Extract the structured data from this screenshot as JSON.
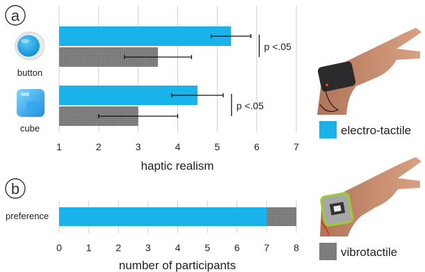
{
  "chart_data": [
    {
      "panel_label": "a",
      "type": "bar",
      "orientation": "horizontal",
      "categories": [
        "button",
        "cube"
      ],
      "category_icons": [
        "button-icon",
        "cube-icon"
      ],
      "series": [
        {
          "name": "electro-tactile",
          "values": [
            5.35,
            4.5
          ],
          "err_low": [
            4.85,
            3.85
          ],
          "err_high": [
            5.85,
            5.15
          ]
        },
        {
          "name": "vibrotactile",
          "values": [
            3.5,
            3.0
          ],
          "err_low": [
            2.65,
            2.0
          ],
          "err_high": [
            4.35,
            4.0
          ]
        }
      ],
      "significance": [
        "p <.05",
        "p <.05"
      ],
      "xlabel": "haptic realism",
      "xticks": [
        "1",
        "2",
        "3",
        "4",
        "5",
        "6",
        "7"
      ],
      "xlim": [
        1,
        7
      ],
      "grid": "vertical"
    },
    {
      "panel_label": "b",
      "type": "bar",
      "orientation": "horizontal",
      "stacked": true,
      "categories": [
        "preference"
      ],
      "series": [
        {
          "name": "electro-tactile",
          "values": [
            7
          ]
        },
        {
          "name": "vibrotactile",
          "values": [
            1
          ]
        }
      ],
      "xlabel": "number of participants",
      "xticks": [
        "0",
        "1",
        "2",
        "3",
        "4",
        "5",
        "6",
        "7",
        "8"
      ],
      "xlim": [
        0,
        8
      ],
      "grid": "vertical"
    }
  ],
  "legend": [
    {
      "label": "electro-tactile",
      "color": "#1ab2ea",
      "image": "hand-wearing-electrotactile-band"
    },
    {
      "label": "vibrotactile",
      "color": "#7d7d7d",
      "image": "hand-wearing-vibrotactile-watch"
    }
  ],
  "colors": {
    "electro": "#1ab2ea",
    "vibro": "#7d7d7d",
    "grid": "#cfcfcf"
  }
}
